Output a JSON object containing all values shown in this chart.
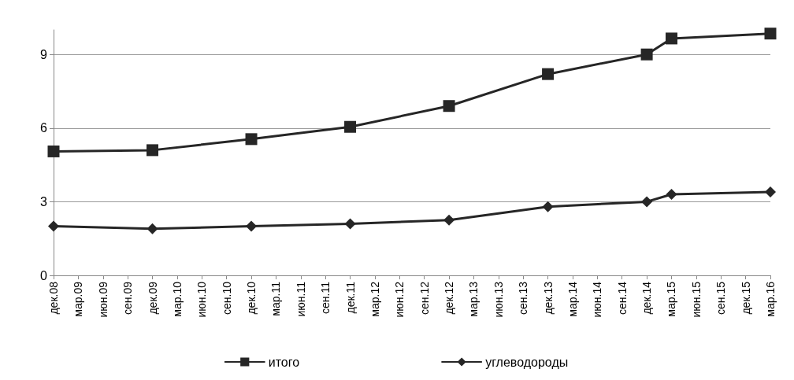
{
  "chart_data": {
    "type": "line",
    "categories": [
      "дек.08",
      "мар.09",
      "июн.09",
      "сен.09",
      "дек.09",
      "мар.10",
      "июн.10",
      "сен.10",
      "дек.10",
      "мар.11",
      "июн.11",
      "сен.11",
      "дек.11",
      "мар.12",
      "июн.12",
      "сен.12",
      "дек.12",
      "мар.13",
      "июн.13",
      "сен.13",
      "дек.13",
      "мар.14",
      "июн.14",
      "сен.14",
      "дек.14",
      "мар.15",
      "июн.15",
      "сен.15",
      "дек.15",
      "мар.16"
    ],
    "series": [
      {
        "name": "итого",
        "color": "#262626",
        "marker": "square",
        "x": [
          "дек.08",
          "дек.09",
          "дек.10",
          "дек.11",
          "дек.12",
          "дек.13",
          "дек.14",
          "мар.15",
          "мар.16"
        ],
        "values": [
          5.05,
          5.1,
          5.55,
          6.05,
          6.9,
          8.2,
          9.0,
          9.65,
          9.85
        ]
      },
      {
        "name": "углеводороды",
        "color": "#262626",
        "marker": "diamond",
        "x": [
          "дек.08",
          "дек.09",
          "дек.10",
          "дек.11",
          "дек.12",
          "дек.13",
          "дек.14",
          "мар.15",
          "мар.16"
        ],
        "values": [
          2.0,
          1.9,
          2.0,
          2.1,
          2.25,
          2.8,
          3.0,
          3.3,
          3.4
        ]
      }
    ],
    "ylim": [
      0,
      10
    ],
    "yticks": [
      0,
      3,
      6,
      9
    ],
    "grid": "y",
    "legend": "bottom",
    "line_style": "solid"
  }
}
